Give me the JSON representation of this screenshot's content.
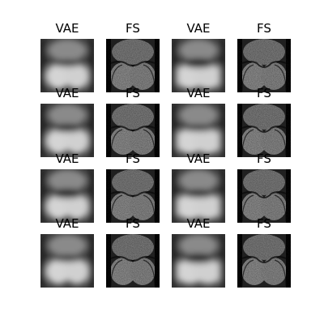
{
  "figure": {
    "columns": [
      {
        "label": "VAE",
        "kind": "vae"
      },
      {
        "label": "FS",
        "kind": "fs"
      },
      {
        "label": "VAE",
        "kind": "vae"
      },
      {
        "label": "FS",
        "kind": "fs"
      }
    ],
    "rows": 4,
    "panels": [
      [
        {
          "label": "VAE",
          "kind": "vae"
        },
        {
          "label": "FS",
          "kind": "fs"
        },
        {
          "label": "VAE",
          "kind": "vae"
        },
        {
          "label": "FS",
          "kind": "fs"
        }
      ],
      [
        {
          "label": "VAE",
          "kind": "vae"
        },
        {
          "label": "FS",
          "kind": "fs"
        },
        {
          "label": "VAE",
          "kind": "vae"
        },
        {
          "label": "FS",
          "kind": "fs"
        }
      ],
      [
        {
          "label": "VAE",
          "kind": "vae"
        },
        {
          "label": "FS",
          "kind": "fs"
        },
        {
          "label": "VAE",
          "kind": "vae"
        },
        {
          "label": "FS",
          "kind": "fs"
        }
      ],
      [
        {
          "label": "VAE",
          "kind": "vae"
        },
        {
          "label": "FS",
          "kind": "fs"
        },
        {
          "label": "VAE",
          "kind": "vae"
        },
        {
          "label": "FS",
          "kind": "fs"
        }
      ]
    ]
  }
}
